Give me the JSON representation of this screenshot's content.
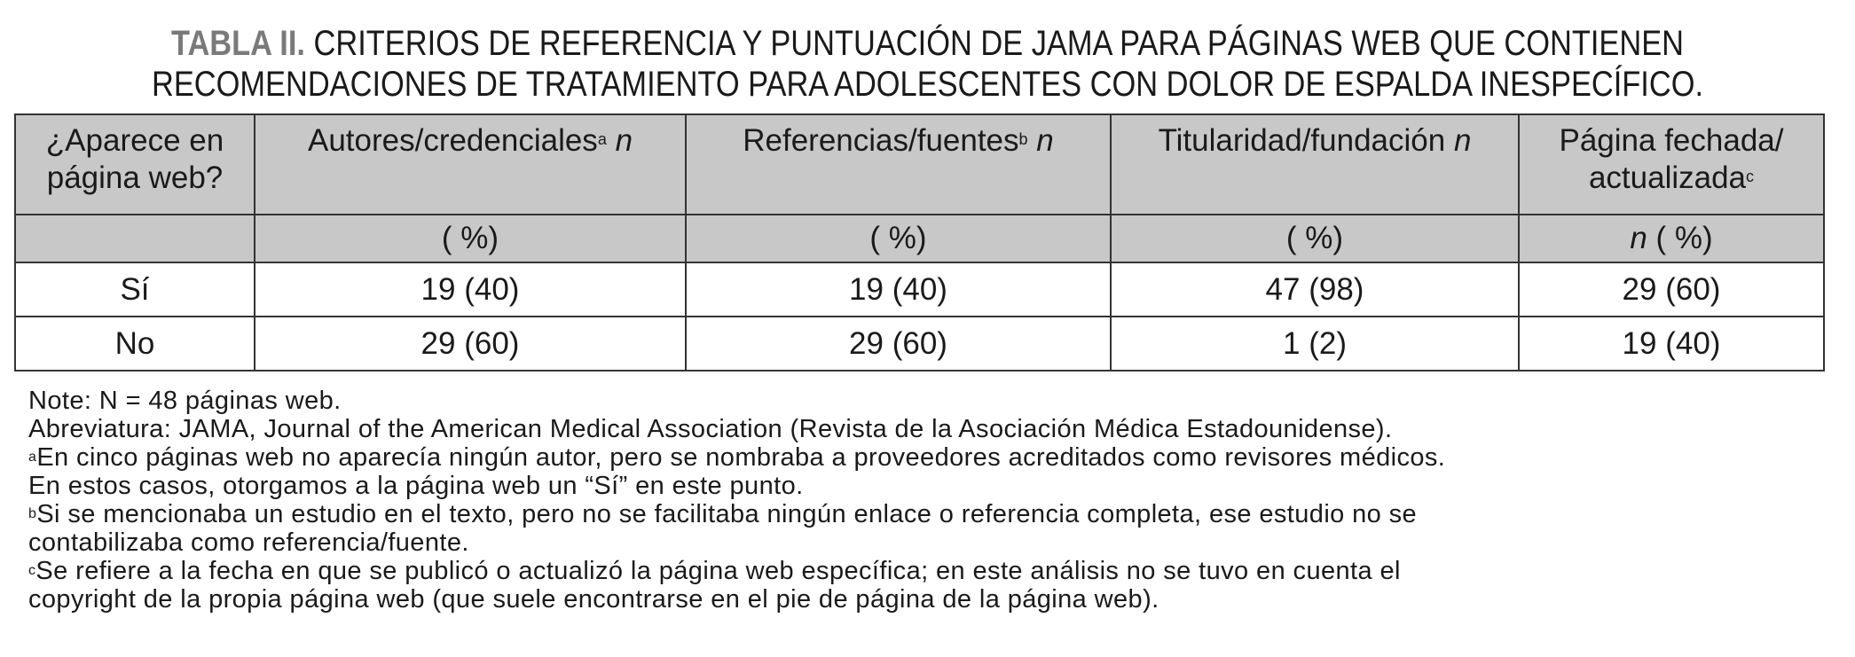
{
  "title": {
    "label": "TABLA II.",
    "line1": "CRITERIOS DE REFERENCIA Y PUNTUACIÓN DE JAMA PARA PÁGINAS WEB QUE CONTIENEN",
    "line2": "RECOMENDACIONES DE TRATAMIENTO PARA ADOLESCENTES CON DOLOR DE ESPALDA INESPECÍFICO."
  },
  "table": {
    "headers": [
      {
        "text": "¿Aparece en página web?",
        "sup": "",
        "italic": ""
      },
      {
        "text": "Autores/credenciales",
        "sup": "a",
        "italic": "n"
      },
      {
        "text": "Referencias/fuentes",
        "sup": "b",
        "italic": "n"
      },
      {
        "text": "Titularidad/fundación",
        "sup": "",
        "italic": "n"
      },
      {
        "text": "Página fechada/ actualizada",
        "sup": "c",
        "italic": ""
      }
    ],
    "subheaders": [
      "",
      "( %)",
      "( %)",
      "( %)",
      "( %)"
    ],
    "subheader_last_italic": "n",
    "rows": [
      [
        "Sí",
        "19 (40)",
        "19 (40)",
        "47 (98)",
        "29 (60)"
      ],
      [
        "No",
        "29 (60)",
        "29 (60)",
        "1 (2)",
        "19 (40)"
      ]
    ]
  },
  "notes": {
    "note": "Note: N = 48 páginas web.",
    "abbrev": "Abreviatura: JAMA, Journal of the American Medical Association (Revista de la Asociación Médica Estadounidense).",
    "a_mark": "a",
    "a_line1": "En cinco páginas web no aparecía ningún autor, pero se nombraba a proveedores acreditados como revisores médicos.",
    "a_line2": "En estos casos, otorgamos a la página web un “Sí” en este punto.",
    "b_mark": "b",
    "b_line1": "Si se mencionaba un estudio en el texto, pero no se facilitaba ningún enlace o referencia completa, ese estudio no se",
    "b_line2": "contabilizaba como referencia/fuente.",
    "c_mark": "c",
    "c_line1": "Se refiere a la fecha en que se publicó o actualizó la página web específica; en este análisis no se tuvo en cuenta el",
    "c_line2": "copyright de la propia página web (que suele encontrarse en el pie de página de la página web)."
  }
}
